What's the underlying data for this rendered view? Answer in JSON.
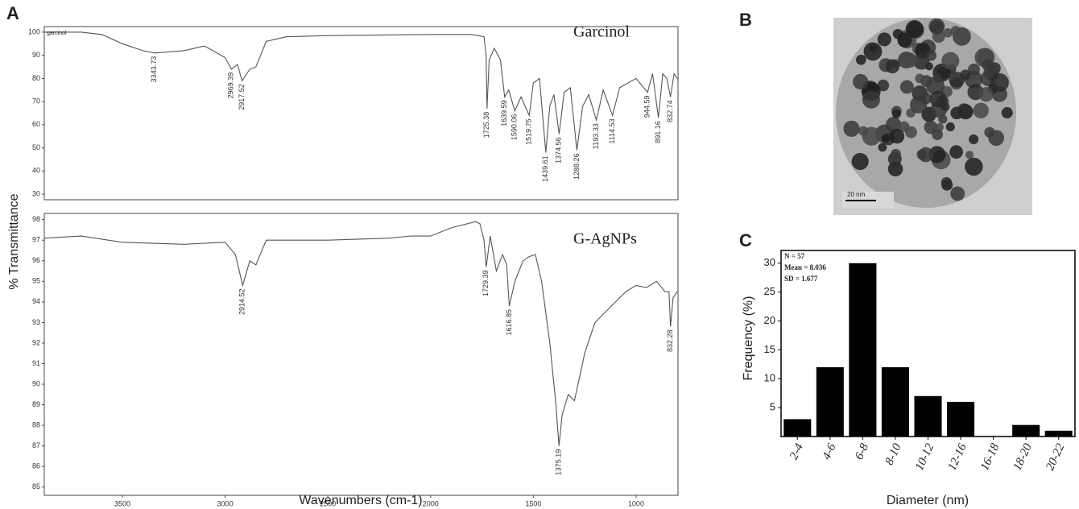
{
  "panel_labels": [
    "A",
    "B",
    "C"
  ],
  "image": {
    "scale_label": "20 nm"
  },
  "chart_data": [
    {
      "type": "line",
      "label": "garcinol",
      "ylabel": "% Transmittance",
      "xlim": [
        3880,
        796
      ],
      "ylim": [
        27.6,
        102.4
      ],
      "yticks": [
        30,
        40,
        50,
        60,
        70,
        80,
        90,
        100
      ],
      "x": [
        3880,
        3700,
        3600,
        3500,
        3400,
        3343.73,
        3200,
        3100,
        3000,
        2969.39,
        2940,
        2917.52,
        2880,
        2850,
        2800,
        2700,
        2500,
        2000,
        1800,
        1740,
        1730,
        1725.38,
        1715,
        1690,
        1660,
        1639.59,
        1620,
        1590.06,
        1560,
        1519.75,
        1500,
        1470,
        1439.61,
        1420,
        1400,
        1374.56,
        1350,
        1320,
        1288.26,
        1260,
        1230,
        1193.33,
        1160,
        1114.53,
        1080,
        1000,
        944.59,
        920,
        891.16,
        870,
        850,
        832.74,
        815,
        800
      ],
      "series": [
        {
          "name": "Garcinol",
          "color": "#555555",
          "values": [
            100,
            100,
            99,
            95,
            92,
            91,
            92,
            94,
            89,
            84,
            86,
            79,
            84,
            85,
            96,
            98,
            98.5,
            99,
            99,
            98,
            90,
            67,
            88,
            93,
            88,
            72,
            75,
            66,
            72,
            64,
            78,
            80,
            48,
            68,
            73,
            56,
            74,
            76,
            49,
            68,
            73,
            62,
            75,
            64,
            76,
            80,
            74,
            82,
            63,
            82,
            80,
            72,
            82,
            80
          ]
        }
      ],
      "peak_labels": [
        3343.73,
        2969.39,
        2917.52,
        1725.38,
        1639.59,
        1590.06,
        1519.75,
        1439.61,
        1374.56,
        1288.26,
        1193.33,
        1114.53,
        944.59,
        891.16,
        832.74
      ]
    },
    {
      "type": "line",
      "xlabel": "Wavenumbers (cm-1)",
      "xlim": [
        3880,
        796
      ],
      "ylim": [
        84.6,
        98.3
      ],
      "xticks": [
        3500,
        3000,
        2500,
        2000,
        1500,
        1000
      ],
      "yticks": [
        85,
        86,
        87,
        88,
        89,
        90,
        91,
        92,
        93,
        94,
        95,
        96,
        97,
        98
      ],
      "x": [
        3880,
        3700,
        3500,
        3200,
        3000,
        2950,
        2914.52,
        2880,
        2850,
        2800,
        2500,
        2200,
        2100,
        2000,
        1900,
        1780,
        1760,
        1740,
        1729.39,
        1710,
        1680,
        1650,
        1630,
        1616.85,
        1590,
        1550,
        1520,
        1490,
        1460,
        1420,
        1390,
        1375.19,
        1360,
        1330,
        1300,
        1250,
        1200,
        1150,
        1100,
        1050,
        1000,
        950,
        900,
        860,
        840,
        832.28,
        820,
        800
      ],
      "series": [
        {
          "name": "G-AgNPs",
          "color": "#555555",
          "values": [
            97.1,
            97.2,
            96.9,
            96.8,
            96.9,
            96.3,
            94.8,
            96,
            95.8,
            97,
            97,
            97.1,
            97.2,
            97.2,
            97.6,
            97.9,
            97.8,
            97,
            95.7,
            97.2,
            95.5,
            96.3,
            95.8,
            93.8,
            95,
            96,
            96.2,
            96.3,
            95,
            92,
            89,
            87,
            88.5,
            89.5,
            89.2,
            91.5,
            93,
            93.5,
            94,
            94.5,
            94.8,
            94.7,
            95,
            94.5,
            94.5,
            92.8,
            94.2,
            94.5
          ]
        }
      ],
      "peak_labels": [
        2914.52,
        1729.39,
        1616.85,
        1375.19,
        832.28
      ]
    },
    {
      "type": "bar",
      "xlabel": "Diameter (nm)",
      "ylabel": "Frequency (%)",
      "annotations": [
        "N = 57",
        "Mean = 8.036",
        "SD = 1.677"
      ],
      "categories": [
        "2-4",
        "4-6",
        "6-8",
        "8-10",
        "10-12",
        "12-16",
        "16-18",
        "18-20",
        "20-22"
      ],
      "values": [
        3,
        12,
        30,
        12,
        7,
        6,
        0,
        2,
        1
      ],
      "color": "#000000",
      "ylim": [
        0,
        32.2
      ],
      "yticks": [
        5,
        10,
        15,
        20,
        25,
        30
      ]
    }
  ]
}
